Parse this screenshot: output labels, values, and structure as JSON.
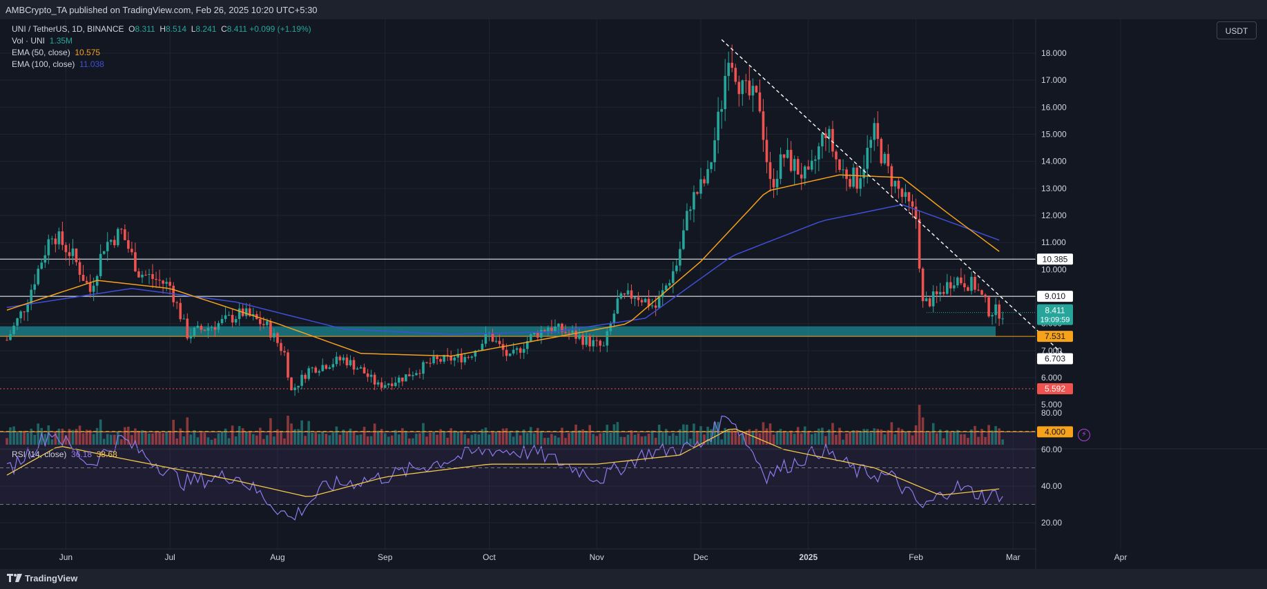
{
  "header": {
    "text": "AMBCrypto_TA published on TradingView.com, Feb 26, 2025 10:20 UTC+5:30"
  },
  "legend": {
    "symbol": "UNI / TetherUS, 1D, BINANCE",
    "ohlc": {
      "o_label": "O",
      "o": "8.311",
      "h_label": "H",
      "h": "8.514",
      "l_label": "L",
      "l": "8.241",
      "c_label": "C",
      "c": "8.411",
      "change": "+0.099 (+1.19%)"
    },
    "volume": {
      "label": "Vol · UNI",
      "value": "1.35M"
    },
    "ema50": {
      "label": "EMA (50, close)",
      "value": "10.575"
    },
    "ema100": {
      "label": "EMA (100, close)",
      "value": "11.038"
    }
  },
  "rsi_legend": {
    "label": "RSI (14, close)",
    "value1": "36.18",
    "value2": "38.68"
  },
  "currency": "USDT",
  "footer": {
    "brand": "TradingView"
  },
  "colors": {
    "background": "#131722",
    "grid": "#1f2431",
    "up": "#26a69a",
    "down": "#ef5350",
    "ema50": "#f7a21b",
    "ema100": "#3f4fd8",
    "rsi": "#8e7cf0",
    "rsi_ma": "#f4c84a",
    "zone": "#1c8a93",
    "support": "#f7a21b",
    "level_white": "#ffffff",
    "level_red": "#ef5350"
  },
  "chart_data": {
    "type": "candlestick",
    "price_axis": {
      "ticks": [
        18.0,
        17.0,
        16.0,
        15.0,
        14.0,
        13.0,
        12.0,
        11.0,
        10.0,
        9.0,
        8.0,
        7.0,
        6.0,
        5.0
      ]
    },
    "time_axis": {
      "labels": [
        "Jun",
        "Jul",
        "Aug",
        "Sep",
        "Oct",
        "Nov",
        "Dec",
        "2025",
        "Feb",
        "Mar",
        "Apr"
      ]
    },
    "levels": [
      {
        "value": 10.385,
        "label": "10.385",
        "color": "#ffffff",
        "style": "solid"
      },
      {
        "value": 9.01,
        "label": "9.010",
        "color": "#ffffff",
        "style": "solid"
      },
      {
        "value": 7.531,
        "label": "7.531",
        "color": "#f7a21b",
        "style": "solid"
      },
      {
        "value": 6.703,
        "label": "6.703",
        "color": "#ffffff",
        "style": "none"
      },
      {
        "value": 5.592,
        "label": "5.592",
        "color": "#ef5350",
        "style": "dotted"
      },
      {
        "value": 4.0,
        "label": "4.000",
        "color": "#f7a21b",
        "style": "solid"
      }
    ],
    "last_price": {
      "value": 8.411,
      "label": "8.411",
      "countdown": "19:09:59"
    },
    "zone": {
      "from": 7.531,
      "to": 7.9
    },
    "anchors": [
      [
        "2024-05-15",
        7.4
      ],
      [
        "2024-05-20",
        8.6
      ],
      [
        "2024-05-28",
        11.4
      ],
      [
        "2024-06-03",
        10.5
      ],
      [
        "2024-06-08",
        9.2
      ],
      [
        "2024-06-12",
        10.9
      ],
      [
        "2024-06-17",
        11.4
      ],
      [
        "2024-06-22",
        9.9
      ],
      [
        "2024-07-01",
        9.4
      ],
      [
        "2024-07-06",
        7.6
      ],
      [
        "2024-07-15",
        8.0
      ],
      [
        "2024-07-22",
        8.4
      ],
      [
        "2024-07-29",
        7.9
      ],
      [
        "2024-08-03",
        6.9
      ],
      [
        "2024-08-05",
        5.5
      ],
      [
        "2024-08-10",
        6.3
      ],
      [
        "2024-08-20",
        6.7
      ],
      [
        "2024-08-25",
        6.3
      ],
      [
        "2024-08-30",
        5.7
      ],
      [
        "2024-09-06",
        6.0
      ],
      [
        "2024-09-15",
        6.6
      ],
      [
        "2024-09-25",
        6.8
      ],
      [
        "2024-10-01",
        7.6
      ],
      [
        "2024-10-07",
        6.7
      ],
      [
        "2024-10-13",
        7.5
      ],
      [
        "2024-10-18",
        7.9
      ],
      [
        "2024-10-25",
        7.6
      ],
      [
        "2024-11-03",
        7.1
      ],
      [
        "2024-11-07",
        8.8
      ],
      [
        "2024-11-12",
        9.1
      ],
      [
        "2024-11-18",
        8.6
      ],
      [
        "2024-11-24",
        10.2
      ],
      [
        "2024-11-28",
        12.5
      ],
      [
        "2024-12-03",
        13.4
      ],
      [
        "2024-12-07",
        16.2
      ],
      [
        "2024-12-09",
        18.2
      ],
      [
        "2024-12-13",
        16.6
      ],
      [
        "2024-12-18",
        16.1
      ],
      [
        "2024-12-21",
        13.1
      ],
      [
        "2024-12-25",
        14.2
      ],
      [
        "2025-01-01",
        13.3
      ],
      [
        "2025-01-06",
        15.2
      ],
      [
        "2025-01-10",
        13.7
      ],
      [
        "2025-01-15",
        13.3
      ],
      [
        "2025-01-20",
        15.0
      ],
      [
        "2025-01-24",
        13.6
      ],
      [
        "2025-01-28",
        12.7
      ],
      [
        "2025-02-01",
        11.9
      ],
      [
        "2025-02-03",
        8.7
      ],
      [
        "2025-02-07",
        9.0
      ],
      [
        "2025-02-12",
        9.7
      ],
      [
        "2025-02-18",
        9.4
      ],
      [
        "2025-02-22",
        8.5
      ],
      [
        "2025-02-26",
        8.41
      ]
    ],
    "ema50_anchors": [
      [
        "2024-05-15",
        8.5
      ],
      [
        "2024-06-10",
        9.6
      ],
      [
        "2024-07-01",
        9.3
      ],
      [
        "2024-08-01",
        8.0
      ],
      [
        "2024-08-25",
        6.9
      ],
      [
        "2024-09-20",
        6.8
      ],
      [
        "2024-10-20",
        7.5
      ],
      [
        "2024-11-10",
        8.0
      ],
      [
        "2024-12-01",
        10.3
      ],
      [
        "2024-12-20",
        12.9
      ],
      [
        "2025-01-10",
        13.5
      ],
      [
        "2025-01-28",
        13.4
      ],
      [
        "2025-02-10",
        12.1
      ],
      [
        "2025-02-26",
        10.575
      ]
    ],
    "ema100_anchors": [
      [
        "2024-05-15",
        8.6
      ],
      [
        "2024-06-20",
        9.3
      ],
      [
        "2024-07-20",
        8.8
      ],
      [
        "2024-08-20",
        7.8
      ],
      [
        "2024-09-20",
        7.6
      ],
      [
        "2024-10-20",
        7.7
      ],
      [
        "2024-11-15",
        8.2
      ],
      [
        "2024-12-10",
        10.5
      ],
      [
        "2025-01-05",
        11.8
      ],
      [
        "2025-01-28",
        12.4
      ],
      [
        "2025-02-12",
        11.7
      ],
      [
        "2025-02-26",
        11.038
      ]
    ],
    "trendline": {
      "from": [
        "2024-12-07",
        18.5
      ],
      "to": [
        "2025-03-16",
        6.8
      ]
    },
    "rsi": {
      "ticks": [
        80.0,
        60.0,
        40.0,
        20.0
      ],
      "upper": 70,
      "lower": 30,
      "anchors": [
        [
          "2024-05-15",
          48
        ],
        [
          "2024-05-28",
          70
        ],
        [
          "2024-06-08",
          52
        ],
        [
          "2024-06-17",
          66
        ],
        [
          "2024-07-05",
          42
        ],
        [
          "2024-07-20",
          46
        ],
        [
          "2024-08-05",
          22
        ],
        [
          "2024-08-15",
          40
        ],
        [
          "2024-09-01",
          45
        ],
        [
          "2024-09-20",
          55
        ],
        [
          "2024-10-01",
          60
        ],
        [
          "2024-10-15",
          58
        ],
        [
          "2024-11-02",
          44
        ],
        [
          "2024-11-15",
          58
        ],
        [
          "2024-12-01",
          62
        ],
        [
          "2024-12-09",
          80
        ],
        [
          "2024-12-20",
          46
        ],
        [
          "2025-01-05",
          60
        ],
        [
          "2025-01-15",
          48
        ],
        [
          "2025-01-25",
          45
        ],
        [
          "2025-02-03",
          28
        ],
        [
          "2025-02-12",
          40
        ],
        [
          "2025-02-22",
          34
        ],
        [
          "2025-02-26",
          36.18
        ]
      ],
      "ma_anchors": [
        [
          "2024-05-15",
          46
        ],
        [
          "2024-05-30",
          62
        ],
        [
          "2024-06-20",
          54
        ],
        [
          "2024-07-20",
          43
        ],
        [
          "2024-08-10",
          34
        ],
        [
          "2024-09-01",
          45
        ],
        [
          "2024-10-01",
          52
        ],
        [
          "2024-11-01",
          52
        ],
        [
          "2024-11-25",
          57
        ],
        [
          "2024-12-10",
          72
        ],
        [
          "2024-12-25",
          60
        ],
        [
          "2025-01-20",
          50
        ],
        [
          "2025-02-08",
          35
        ],
        [
          "2025-02-26",
          38.68
        ]
      ]
    }
  }
}
